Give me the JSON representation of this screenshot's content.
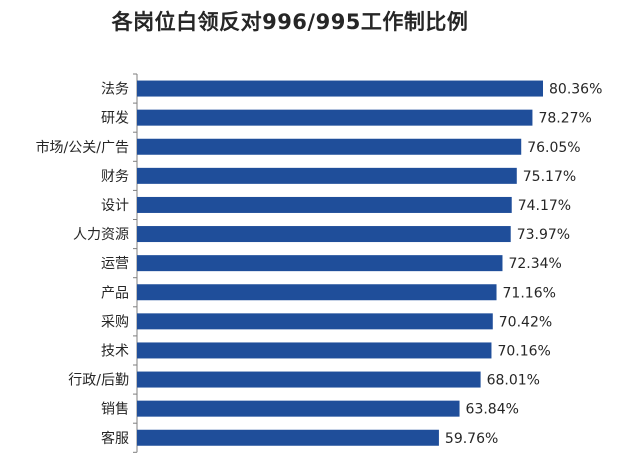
{
  "chart_data": {
    "type": "bar",
    "orientation": "horizontal",
    "title": "各岗位白领反对996/995工作制比例",
    "categories": [
      "法务",
      "研发",
      "市场/公关/广告",
      "财务",
      "设计",
      "人力资源",
      "运营",
      "产品",
      "采购",
      "技术",
      "行政/后勤",
      "销售",
      "客服"
    ],
    "values": [
      80.36,
      78.27,
      76.05,
      75.17,
      74.17,
      73.97,
      72.34,
      71.16,
      70.42,
      70.16,
      68.01,
      63.84,
      59.76
    ],
    "value_labels": [
      "80.36%",
      "78.27%",
      "76.05%",
      "75.17%",
      "74.17%",
      "73.97%",
      "72.34%",
      "71.16%",
      "70.42%",
      "70.16%",
      "68.01%",
      "63.84%",
      "59.76%"
    ],
    "unit": "%",
    "xlim": [
      0,
      100
    ],
    "bar_color": "#1F4E9A",
    "axis_color": "#7F7F7F",
    "grid": false,
    "legend": "none"
  }
}
